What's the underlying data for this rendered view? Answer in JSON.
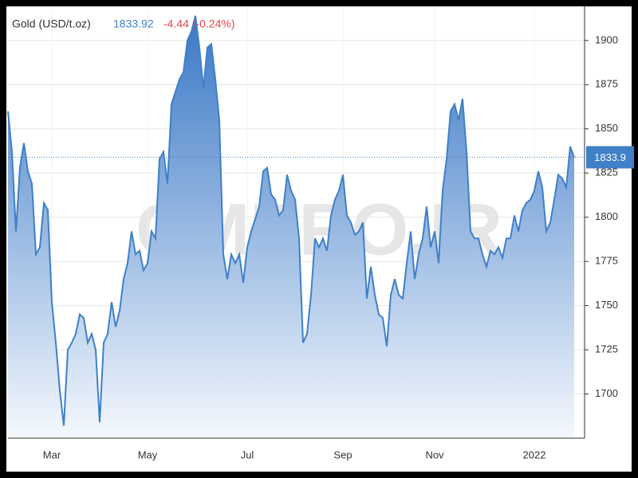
{
  "chart_data": {
    "type": "area",
    "title": "Gold (USD/t.oz)",
    "price_label": "1833.92",
    "change_label": "-4.44 (-0.24%)",
    "last_label": "1833.9",
    "watermark": "CMPRO.IR",
    "color": "#3f80c8",
    "grid": true,
    "categories": [
      null,
      null,
      null,
      null,
      null,
      null,
      null,
      null,
      null,
      null,
      null,
      "Mar",
      null,
      null,
      null,
      null,
      null,
      null,
      null,
      null,
      null,
      null,
      null,
      null,
      null,
      null,
      null,
      null,
      null,
      null,
      null,
      null,
      null,
      null,
      null,
      "May",
      null,
      null,
      null,
      null,
      null,
      null,
      null,
      null,
      null,
      null,
      null,
      null,
      null,
      null,
      null,
      null,
      null,
      null,
      null,
      null,
      null,
      null,
      null,
      null,
      "Jul",
      null,
      null,
      null,
      null,
      null,
      null,
      null,
      null,
      null,
      null,
      null,
      null,
      null,
      null,
      null,
      null,
      null,
      null,
      null,
      null,
      null,
      null,
      null,
      "Sep",
      null,
      null,
      null,
      null,
      null,
      null,
      null,
      null,
      null,
      null,
      null,
      null,
      null,
      null,
      null,
      null,
      null,
      null,
      null,
      null,
      null,
      null,
      "Nov",
      null,
      null,
      null,
      null,
      null,
      null,
      null,
      null,
      null,
      null,
      null,
      null,
      null,
      null,
      null,
      null,
      null,
      null,
      null,
      null,
      null,
      null,
      null,
      null,
      "2022",
      null,
      null,
      null,
      null,
      null,
      null,
      null,
      null,
      null,
      null
    ],
    "values": [
      1860,
      1837,
      1792,
      1828,
      1842,
      1826,
      1819,
      1779,
      1783,
      1808,
      1804,
      1752,
      1729,
      1702,
      1682,
      1725,
      1729,
      1734,
      1745,
      1743,
      1729,
      1734,
      1725,
      1684,
      1729,
      1734,
      1752,
      1738,
      1747,
      1765,
      1774,
      1792,
      1779,
      1781,
      1770,
      1774,
      1792,
      1788,
      1833,
      1837,
      1819,
      1864,
      1871,
      1878,
      1882,
      1900,
      1905,
      1914,
      1896,
      1873,
      1896,
      1898,
      1878,
      1855,
      1779,
      1765,
      1779,
      1774,
      1779,
      1763,
      1783,
      1792,
      1799,
      1806,
      1826,
      1828,
      1813,
      1810,
      1801,
      1804,
      1824,
      1815,
      1810,
      1788,
      1729,
      1734,
      1756,
      1788,
      1783,
      1788,
      1781,
      1801,
      1810,
      1815,
      1824,
      1801,
      1797,
      1790,
      1792,
      1797,
      1754,
      1772,
      1756,
      1745,
      1743,
      1727,
      1756,
      1765,
      1756,
      1754,
      1774,
      1792,
      1765,
      1779,
      1788,
      1806,
      1783,
      1792,
      1774,
      1815,
      1833,
      1860,
      1864,
      1855,
      1867,
      1837,
      1792,
      1788,
      1788,
      1779,
      1772,
      1781,
      1779,
      1783,
      1777,
      1788,
      1788,
      1801,
      1792,
      1804,
      1808,
      1810,
      1815,
      1826,
      1817,
      1792,
      1797,
      1810,
      1824,
      1822,
      1817,
      1840,
      1833.92
    ],
    "ylim": [
      1675,
      1917.5
    ],
    "yticks": [
      1700,
      1725,
      1750,
      1775,
      1800,
      1825,
      1850,
      1875,
      1900
    ]
  }
}
